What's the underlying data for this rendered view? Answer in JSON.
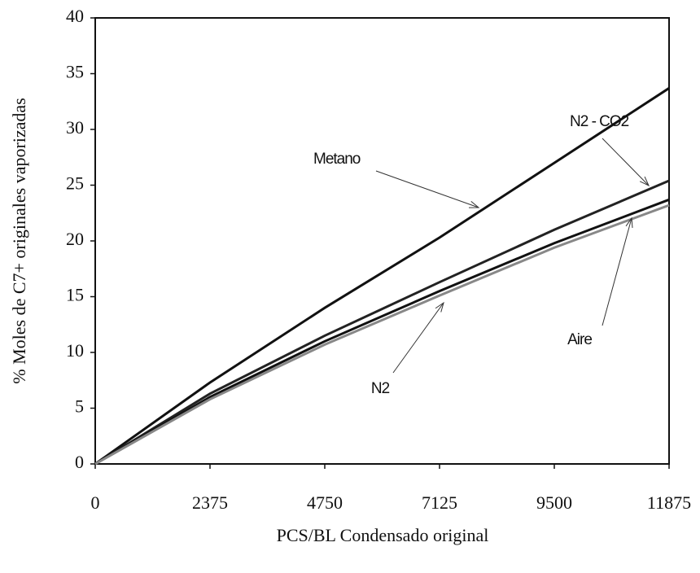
{
  "chart_data": {
    "type": "line",
    "x_label": "PCS/BL Condensado original",
    "y_label": "% Moles de C7+ originales vaporizadas",
    "x": [
      0,
      2375,
      4750,
      7125,
      9500,
      11875
    ],
    "series": [
      {
        "name": "Metano",
        "color": "#111111",
        "values": [
          0,
          7.3,
          14,
          20.3,
          27,
          33.7
        ]
      },
      {
        "name": "N2 - CO2",
        "color": "#222222",
        "values": [
          0,
          6.3,
          11.5,
          16.3,
          21,
          25.4
        ]
      },
      {
        "name": "N2",
        "color": "#111111",
        "values": [
          0,
          6,
          11,
          15.5,
          19.8,
          23.7
        ]
      },
      {
        "name": "Aire",
        "color": "#888888",
        "values": [
          0,
          5.8,
          10.7,
          15.1,
          19.4,
          23.2
        ]
      }
    ],
    "xlim": [
      0,
      11875
    ],
    "xticks": [
      0,
      2375,
      4750,
      7125,
      9500,
      11875
    ],
    "ylim": [
      0,
      40
    ],
    "yticks": [
      0,
      5,
      10,
      15,
      20,
      25,
      30,
      35,
      40
    ]
  }
}
